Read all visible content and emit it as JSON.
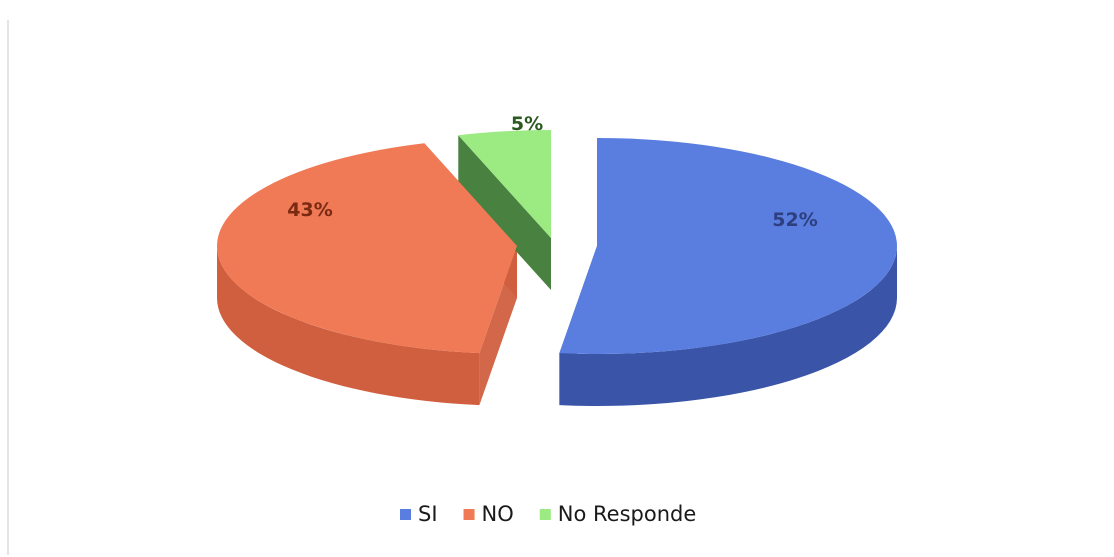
{
  "chart_data": {
    "type": "pie",
    "style": "3d-exploded",
    "title": "",
    "categories": [
      "SI",
      "NO",
      "No Responde"
    ],
    "values": [
      52,
      43,
      5
    ],
    "labels": [
      "52%",
      "43%",
      "5%"
    ],
    "colors": {
      "SI": "#5a7ee0",
      "NO": "#f07a55",
      "No Responde": "#9bea82"
    },
    "side_colors": {
      "SI": "#3a55a8",
      "NO": "#d05f3f",
      "No Responde": "#3f7a36"
    },
    "label_colors": {
      "SI": "#2e3f80",
      "NO": "#7a2a12",
      "No Responde": "#2a5a20"
    },
    "legend": {
      "position": "bottom",
      "items": [
        {
          "name": "SI",
          "color": "#5a7ee0"
        },
        {
          "name": "NO",
          "color": "#f07a55"
        },
        {
          "name": "No Responde",
          "color": "#9bea82"
        }
      ]
    }
  }
}
